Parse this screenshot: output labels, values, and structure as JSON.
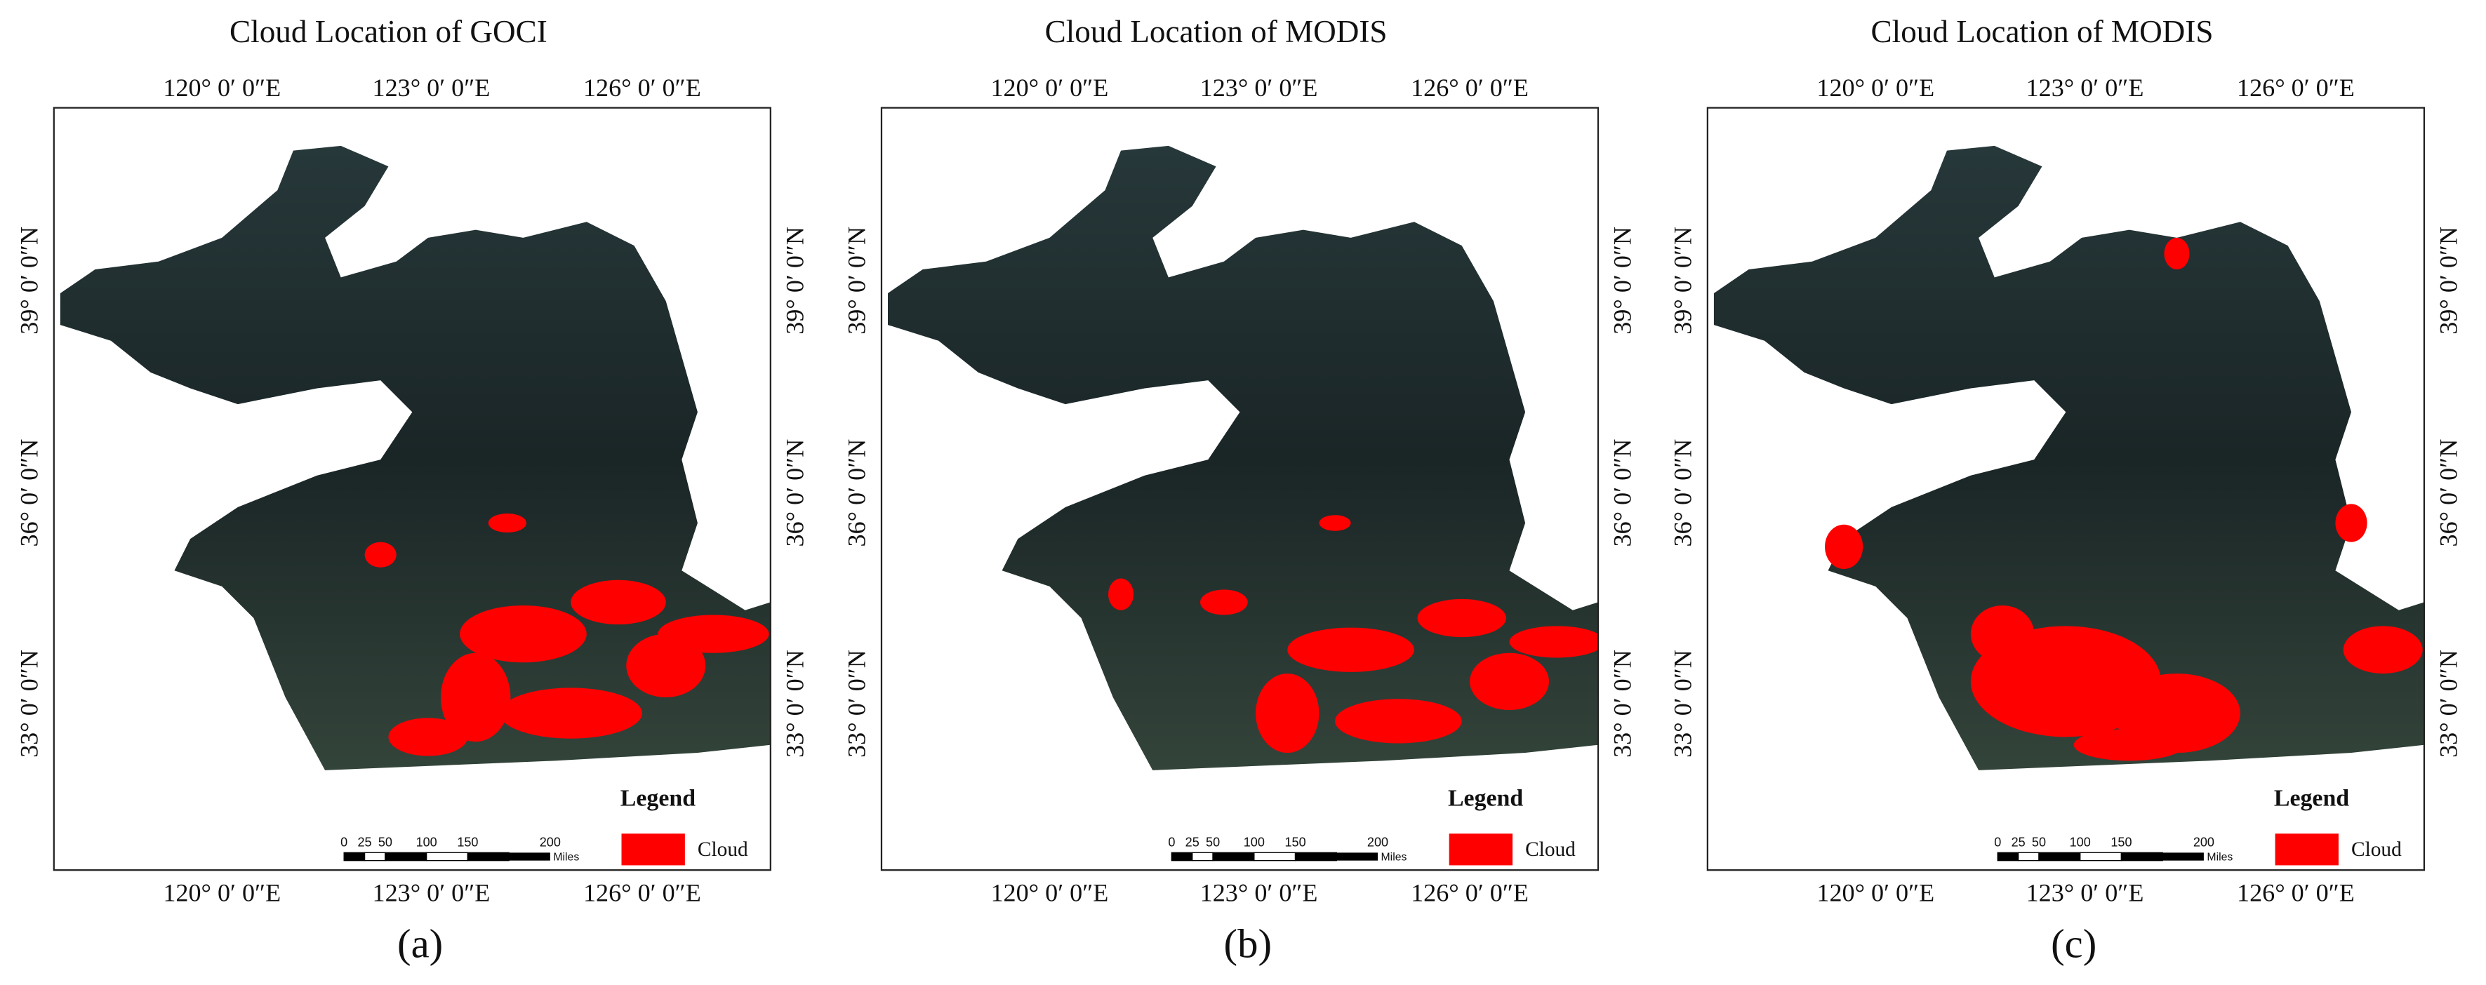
{
  "panels": [
    {
      "title": "Cloud Location of GOCI",
      "top_labels": [
        "120° 0′ 0″E",
        "123° 0′ 0″E",
        "126° 0′ 0″E"
      ],
      "bottom_labels": [
        "120° 0′ 0″E",
        "123° 0′ 0″E",
        "126° 0′ 0″E"
      ],
      "left_labels": [
        "39° 0′ 0″N",
        "36° 0′ 0″N",
        "33° 0′ 0″N"
      ],
      "right_labels": [
        "39° 0′ 0″N",
        "36° 0′ 0″N",
        "33° 0′ 0″N"
      ],
      "legend_title": "Legend",
      "legend_item": "Cloud",
      "scale_labels": [
        "0",
        "25",
        "50",
        "100",
        "150",
        "200"
      ],
      "scale_unit": "Miles",
      "caption": "(a)"
    },
    {
      "title": "Cloud Location of MODIS",
      "top_labels": [
        "120° 0′ 0″E",
        "123° 0′ 0″E",
        "126° 0′ 0″E"
      ],
      "bottom_labels": [
        "120° 0′ 0″E",
        "123° 0′ 0″E",
        "126° 0′ 0″E"
      ],
      "left_labels": [
        "39° 0′ 0″N",
        "36° 0′ 0″N",
        "33° 0′ 0″N"
      ],
      "right_labels": [
        "39° 0′ 0″N",
        "36° 0′ 0″N",
        "33° 0′ 0″N"
      ],
      "legend_title": "Legend",
      "legend_item": "Cloud",
      "scale_labels": [
        "0",
        "25",
        "50",
        "100",
        "150",
        "200"
      ],
      "scale_unit": "Miles",
      "caption": "(b)"
    },
    {
      "title": "Cloud Location of MODIS",
      "top_labels": [
        "120° 0′ 0″E",
        "123° 0′ 0″E",
        "126° 0′ 0″E"
      ],
      "bottom_labels": [
        "120° 0′ 0″E",
        "123° 0′ 0″E",
        "126° 0′ 0″E"
      ],
      "left_labels": [
        "39° 0′ 0″N",
        "36° 0′ 0″N",
        "33° 0′ 0″N"
      ],
      "right_labels": [
        "39° 0′ 0″N",
        "36° 0′ 0″N",
        "33° 0′ 0″N"
      ],
      "legend_title": "Legend",
      "legend_item": "Cloud",
      "scale_labels": [
        "0",
        "25",
        "50",
        "100",
        "150",
        "200"
      ],
      "scale_unit": "Miles",
      "caption": "(c)"
    }
  ]
}
